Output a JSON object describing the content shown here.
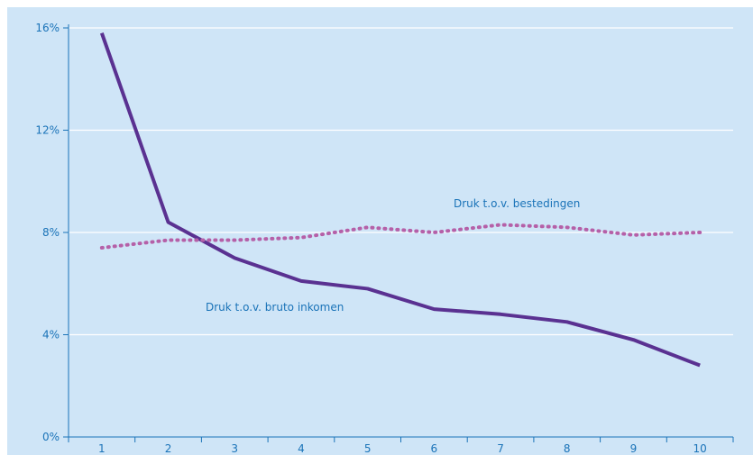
{
  "chart_data": {
    "type": "line",
    "title": "",
    "xlabel": "",
    "ylabel": "",
    "categories": [
      "1",
      "2",
      "3",
      "4",
      "5",
      "6",
      "7",
      "8",
      "9",
      "10"
    ],
    "ylim": [
      0,
      16
    ],
    "yticks": [
      0,
      4,
      8,
      12,
      16
    ],
    "ytick_labels": [
      "0%",
      "4%",
      "8%",
      "12%",
      "16%"
    ],
    "grid": "horizontal",
    "series": [
      {
        "name": "Druk t.o.v. bruto inkomen",
        "style": "solid",
        "color": "#5a3191",
        "values": [
          15.8,
          8.4,
          7.0,
          6.1,
          5.8,
          5.0,
          4.8,
          4.5,
          3.8,
          2.8
        ]
      },
      {
        "name": "Druk t.o.v. bestedingen",
        "style": "dotted",
        "color": "#b560a8",
        "values": [
          7.4,
          7.7,
          7.7,
          7.8,
          8.2,
          8.0,
          8.3,
          8.2,
          7.9,
          8.0
        ]
      }
    ],
    "annotations": [
      {
        "text": "Druk t.o.v. bestedingen"
      },
      {
        "text": "Druk t.o.v. bruto inkomen"
      }
    ]
  },
  "colors": {
    "background": "#cfe5f7",
    "grid": "#ffffff",
    "axis": "#1a73b8",
    "text": "#1a73b8"
  }
}
